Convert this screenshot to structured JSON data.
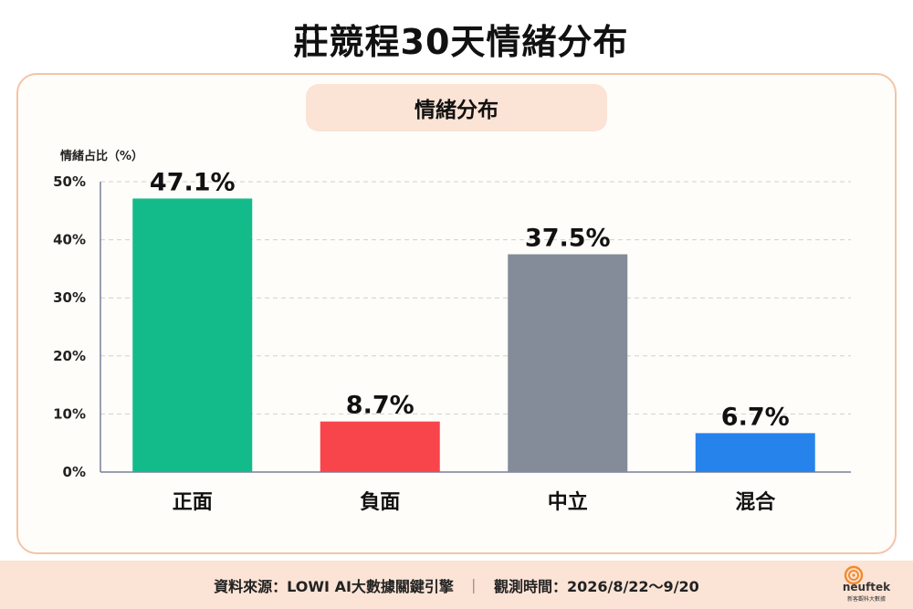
{
  "page": {
    "title": "莊競程30天情緒分布"
  },
  "chart_data": {
    "type": "bar",
    "title": "情緒分布",
    "xlabel": "",
    "ylabel": "情緒占比（%）",
    "categories": [
      "正面",
      "負面",
      "中立",
      "混合"
    ],
    "values": [
      47.1,
      8.7,
      37.5,
      6.7
    ],
    "value_labels": [
      "47.1%",
      "8.7%",
      "37.5%",
      "6.7%"
    ],
    "colors": [
      "#14bb8a",
      "#f8454c",
      "#848b99",
      "#2683eb"
    ],
    "ylim": [
      0,
      50
    ],
    "yticks": [
      0,
      10,
      20,
      30,
      40,
      50
    ],
    "ytick_labels": [
      "0%",
      "10%",
      "20%",
      "30%",
      "40%",
      "50%"
    ],
    "grid": "horizontal dashed",
    "legend": "none"
  },
  "footer": {
    "source": "資料來源：LOWI AI大數據關鍵引擎",
    "separator": "｜",
    "period": "觀測時間：2026/8/22～9/20"
  },
  "logo": {
    "name": "neuftek",
    "tagline": "新客觀科大數據"
  },
  "colors": {
    "card_border": "#f3c4a8",
    "pill_bg": "#fbe3d5",
    "footer_bg": "#fbe3d5",
    "logo_accent": "#f28a2e"
  }
}
